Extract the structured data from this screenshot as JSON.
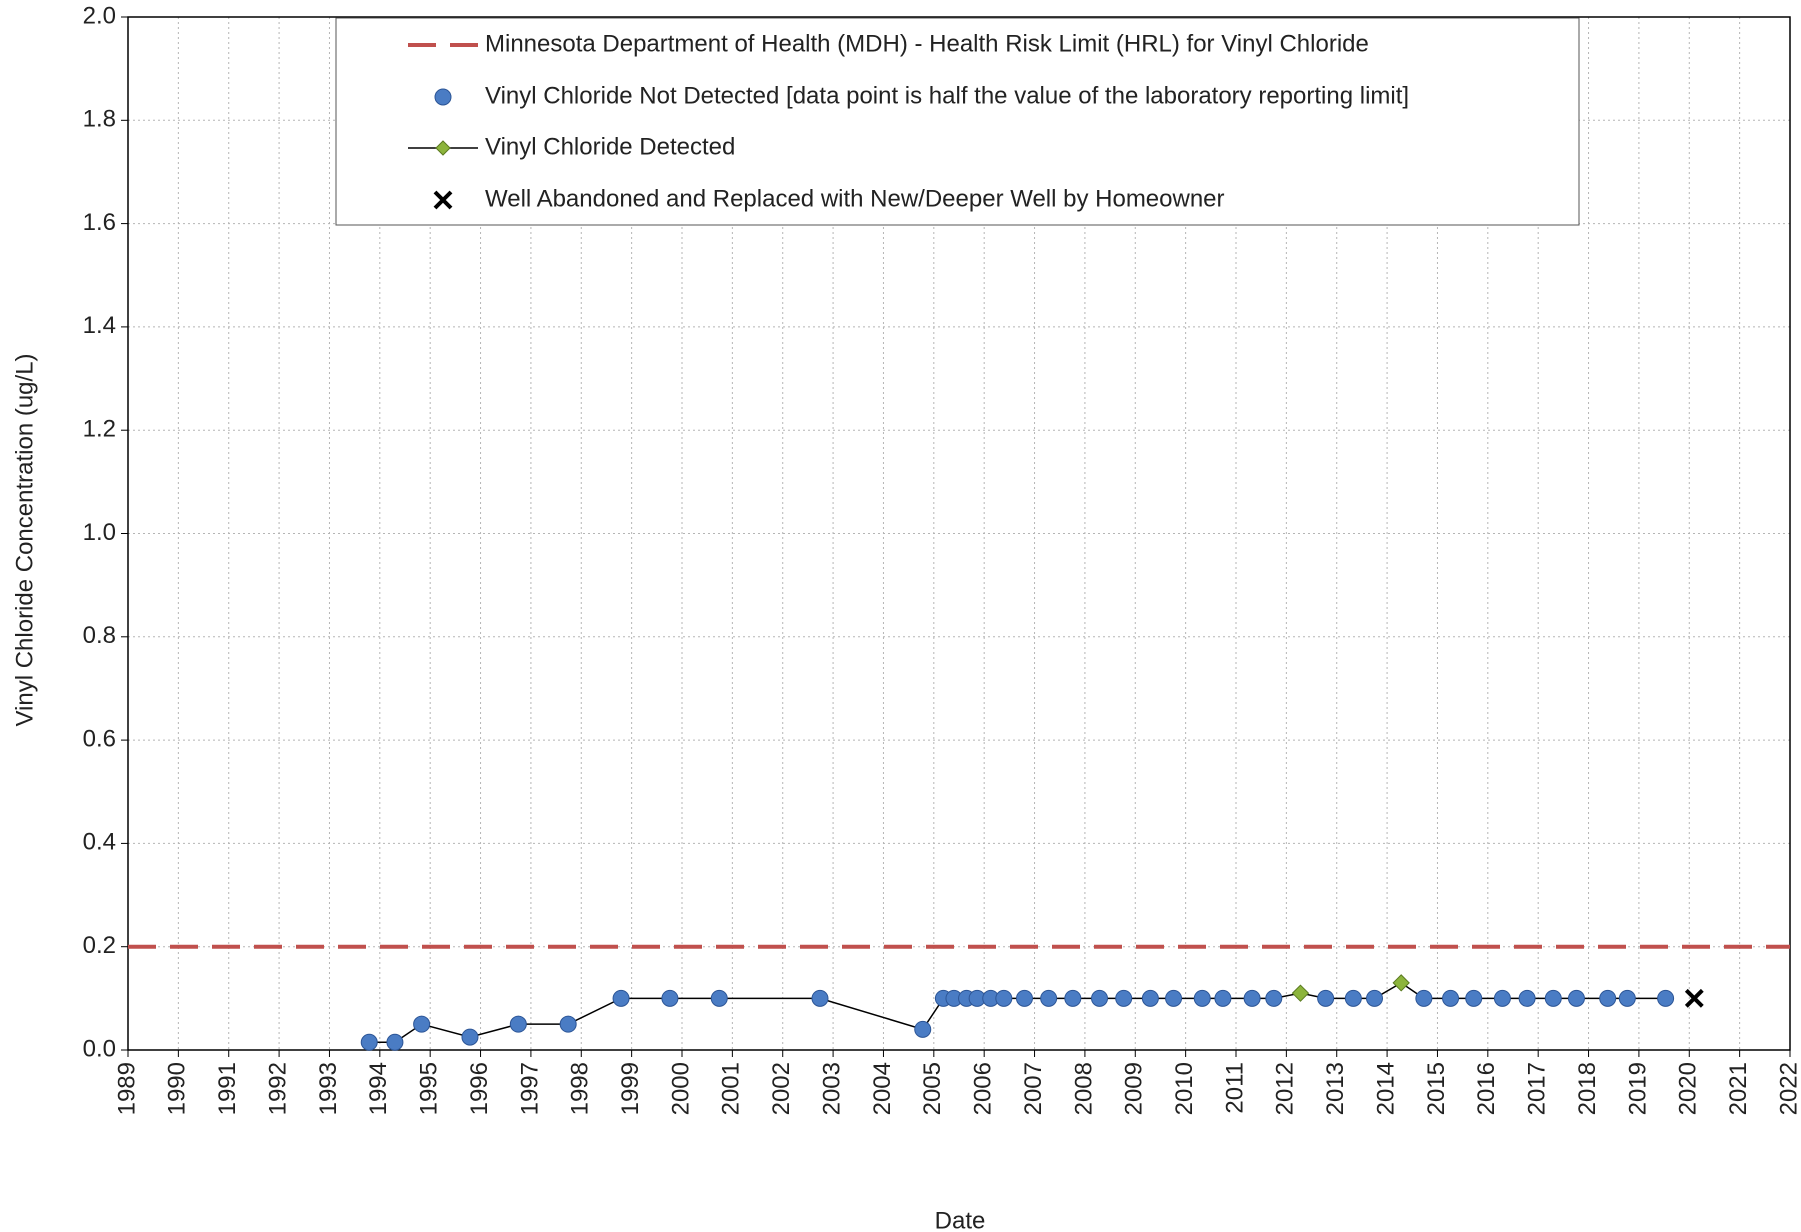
{
  "chart_data": {
    "type": "line",
    "xlabel": "Date",
    "ylabel": "Vinyl Chloride Concentration (ug/L)",
    "xlim": [
      1989,
      2022
    ],
    "xticks": [
      1989,
      1990,
      1991,
      1992,
      1993,
      1994,
      1995,
      1996,
      1997,
      1998,
      1999,
      2000,
      2001,
      2002,
      2003,
      2004,
      2005,
      2006,
      2007,
      2008,
      2009,
      2010,
      2011,
      2012,
      2013,
      2014,
      2015,
      2016,
      2017,
      2018,
      2019,
      2020,
      2021,
      2022
    ],
    "ylim": [
      0,
      2
    ],
    "yticks": [
      {
        "value": 0,
        "label": "0.0"
      },
      {
        "value": 0.2,
        "label": "0.2"
      },
      {
        "value": 0.4,
        "label": "0.4"
      },
      {
        "value": 0.6,
        "label": "0.6"
      },
      {
        "value": 0.8,
        "label": "0.8"
      },
      {
        "value": 1,
        "label": "1.0"
      },
      {
        "value": 1.2,
        "label": "1.2"
      },
      {
        "value": 1.4,
        "label": "1.4"
      },
      {
        "value": 1.6,
        "label": "1.6"
      },
      {
        "value": 1.8,
        "label": "1.8"
      },
      {
        "value": 2,
        "label": "2.0"
      }
    ],
    "grid": true,
    "x": [
      1993.79,
      1994.3,
      1994.83,
      1995.79,
      1996.75,
      1997.74,
      1998.79,
      1999.76,
      2000.74,
      2002.74,
      2004.78,
      2005.19,
      2005.4,
      2005.65,
      2005.86,
      2006.13,
      2006.39,
      2006.8,
      2007.28,
      2007.76,
      2008.29,
      2008.77,
      2009.3,
      2009.76,
      2010.33,
      2010.74,
      2011.32,
      2011.75,
      2012.28,
      2012.78,
      2013.33,
      2013.75,
      2014.28,
      2014.73,
      2015.26,
      2015.72,
      2016.29,
      2016.78,
      2017.3,
      2017.76,
      2018.38,
      2018.77,
      2019.53
    ],
    "values": [
      0.015,
      0.015,
      0.05,
      0.025,
      0.05,
      0.05,
      0.1,
      0.1,
      0.1,
      0.1,
      0.04,
      0.1,
      0.1,
      0.1,
      0.1,
      0.1,
      0.1,
      0.1,
      0.1,
      0.1,
      0.1,
      0.1,
      0.1,
      0.1,
      0.1,
      0.1,
      0.1,
      0.1,
      0.11,
      0.1,
      0.1,
      0.1,
      0.13,
      0.1,
      0.1,
      0.1,
      0.1,
      0.1,
      0.1,
      0.1,
      0.1,
      0.1,
      0.1
    ],
    "detected": [
      false,
      false,
      false,
      false,
      false,
      false,
      false,
      false,
      false,
      false,
      false,
      false,
      false,
      false,
      false,
      false,
      false,
      false,
      false,
      false,
      false,
      false,
      false,
      false,
      false,
      false,
      false,
      false,
      true,
      false,
      false,
      false,
      true,
      false,
      false,
      false,
      false,
      false,
      false,
      false,
      false,
      false,
      false
    ],
    "line_color": "#000000",
    "not_detected": {
      "name": "Vinyl Chloride Not Detected [data point is half the value of the laboratory reporting limit]",
      "color": "#4a7cc4"
    },
    "detected_style": {
      "name": "Vinyl Chloride Detected",
      "color": "#8cb43c"
    },
    "hrl": {
      "name": "Minnesota Department of Health (MDH) - Health Risk Limit (HRL) for Vinyl Chloride",
      "value": 0.2,
      "color": "#c0504d"
    },
    "abandoned": {
      "name": "Well Abandoned and Replaced with New/Deeper Well by Homeowner",
      "x": 2020.1,
      "value": 0.1,
      "color": "#000000"
    },
    "legend": "top"
  }
}
